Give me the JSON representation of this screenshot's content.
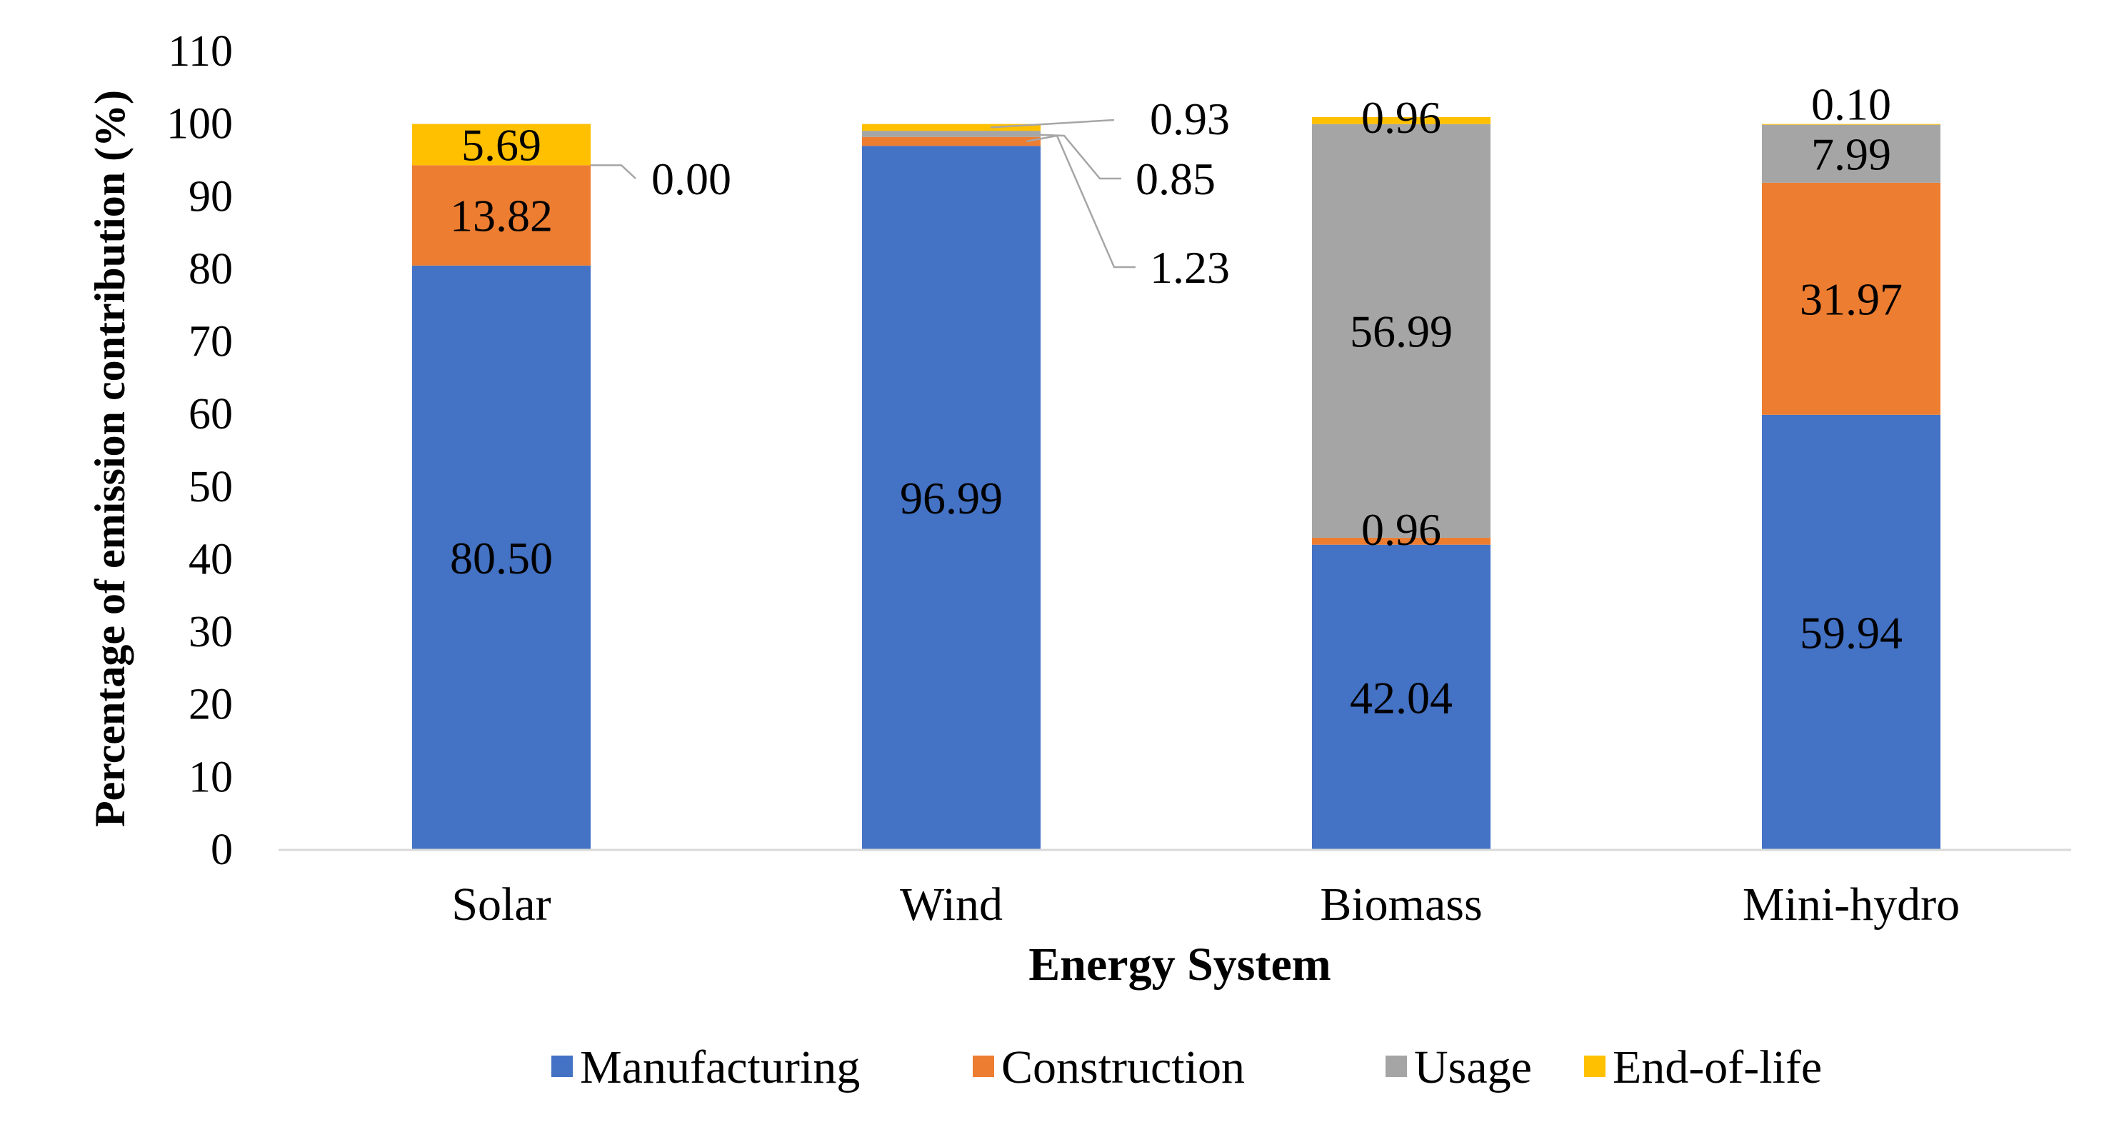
{
  "chart_data": {
    "type": "bar",
    "stacked": true,
    "title": "",
    "xlabel": "Energy System",
    "ylabel": "Percentage of emission contribution (%)",
    "ylim": [
      0,
      110
    ],
    "ytick_step": 10,
    "yticks": [
      "0",
      "10",
      "20",
      "30",
      "40",
      "50",
      "60",
      "70",
      "80",
      "90",
      "100",
      "110"
    ],
    "grid": false,
    "legend_position": "bottom",
    "categories": [
      "Solar",
      "Wind",
      "Biomass",
      "Mini-hydro"
    ],
    "series": [
      {
        "name": "Manufacturing",
        "color": "#4472C4",
        "values": [
          80.5,
          96.99,
          42.04,
          59.94
        ],
        "labels": [
          "80.50",
          "96.99",
          "42.04",
          "59.94"
        ]
      },
      {
        "name": "Construction",
        "color": "#ED7D31",
        "values": [
          13.82,
          1.23,
          0.96,
          31.97
        ],
        "labels": [
          "13.82",
          "1.23",
          "0.96",
          "31.97"
        ]
      },
      {
        "name": "Usage",
        "color": "#A5A5A5",
        "values": [
          0.0,
          0.85,
          56.99,
          7.99
        ],
        "labels": [
          "0.00",
          "0.85",
          "56.99",
          "7.99"
        ]
      },
      {
        "name": "End-of-life",
        "color": "#FFC000",
        "values": [
          5.69,
          0.93,
          0.96,
          0.1
        ],
        "labels": [
          "5.69",
          "0.93",
          "0.96",
          "0.10"
        ]
      }
    ],
    "axis_color": "#D9D9D9",
    "leader_line_color": "#A6A6A6"
  }
}
